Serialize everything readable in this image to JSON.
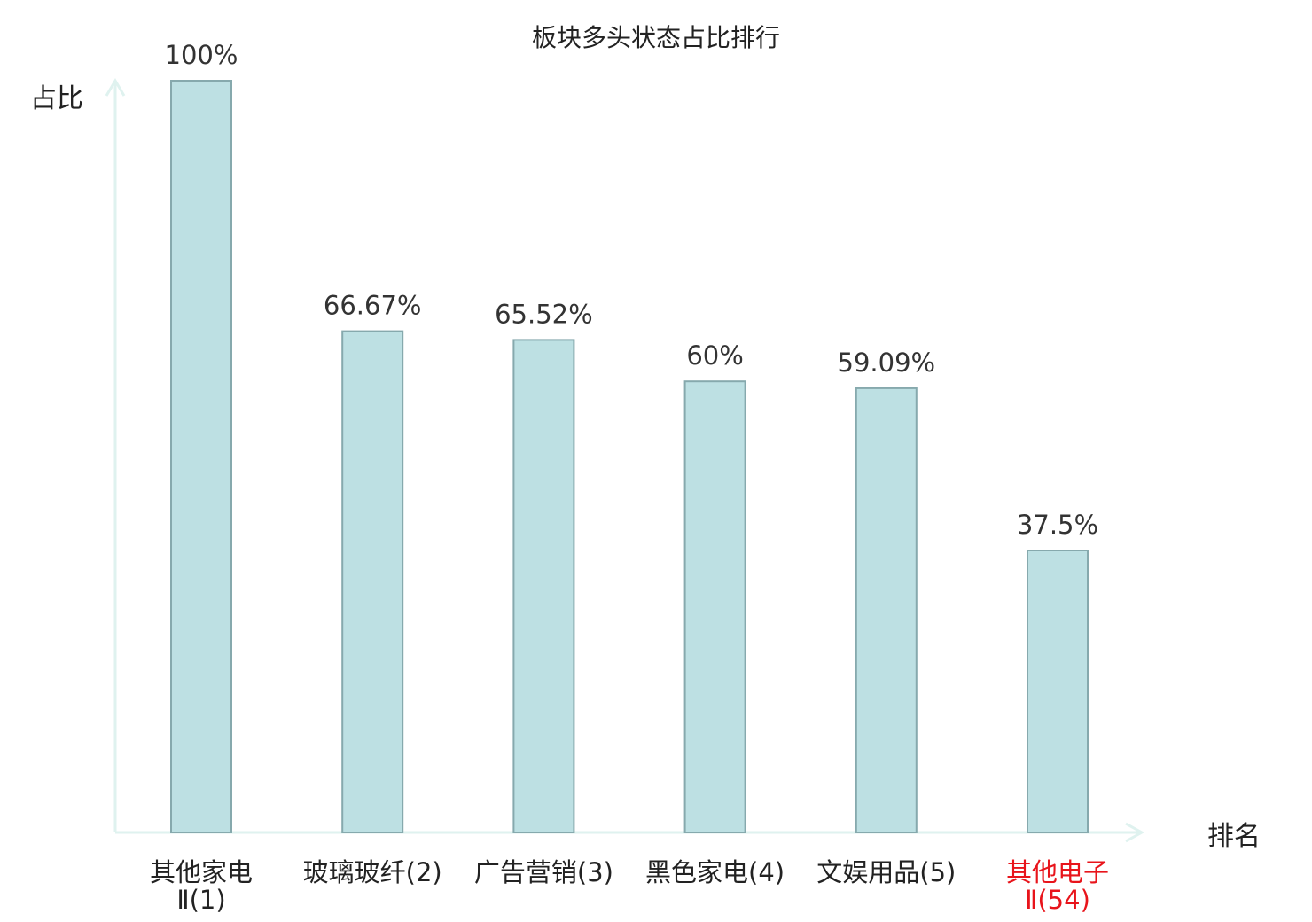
{
  "chart_data": {
    "type": "bar",
    "title": "板块多头状态占比排行",
    "ylabel": "占比",
    "xlabel": "排名",
    "ylim": [
      0,
      100
    ],
    "grid": false,
    "categories": [
      {
        "name": "其他家电",
        "rank": "Ⅱ(1)",
        "highlight": false
      },
      {
        "name": "玻璃玻纤",
        "rank": "(2)",
        "highlight": false
      },
      {
        "name": "广告营销",
        "rank": "(3)",
        "highlight": false
      },
      {
        "name": "黑色家电",
        "rank": "(4)",
        "highlight": false
      },
      {
        "name": "文娱用品",
        "rank": "(5)",
        "highlight": false
      },
      {
        "name": "其他电子",
        "rank": "Ⅱ(54)",
        "highlight": true
      }
    ],
    "values": [
      100,
      66.67,
      65.52,
      60,
      59.09,
      37.5
    ],
    "value_labels": [
      "100%",
      "66.67%",
      "65.52%",
      "60%",
      "59.09%",
      "37.5%"
    ]
  },
  "colors": {
    "bar_fill": "#bde0e3",
    "bar_stroke": "#86a9ad",
    "axis": "#dff2ef",
    "text": "#222222",
    "highlight": "#e8141b"
  }
}
